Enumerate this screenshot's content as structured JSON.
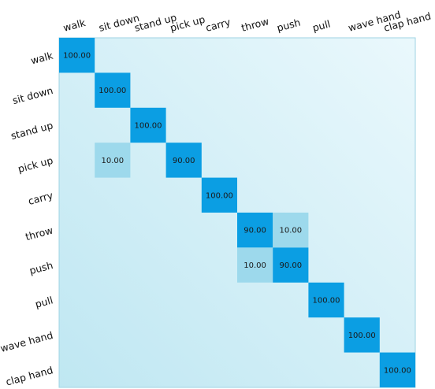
{
  "chart_data": {
    "type": "heatmap",
    "title": "",
    "xlabel": "",
    "ylabel": "",
    "x_categories": [
      "walk",
      "sit down",
      "stand up",
      "pick up",
      "carry",
      "throw",
      "push",
      "pull",
      "wave hand",
      "clap hand"
    ],
    "y_categories": [
      "walk",
      "sit down",
      "stand up",
      "pick up",
      "carry",
      "throw",
      "push",
      "pull",
      "wave hand",
      "clap hand"
    ],
    "cells": [
      {
        "row": 0,
        "col": 0,
        "value": "100.00"
      },
      {
        "row": 1,
        "col": 1,
        "value": "100.00"
      },
      {
        "row": 2,
        "col": 2,
        "value": "100.00"
      },
      {
        "row": 3,
        "col": 1,
        "value": "10.00"
      },
      {
        "row": 3,
        "col": 3,
        "value": "90.00"
      },
      {
        "row": 4,
        "col": 4,
        "value": "100.00"
      },
      {
        "row": 5,
        "col": 5,
        "value": "90.00"
      },
      {
        "row": 5,
        "col": 6,
        "value": "10.00"
      },
      {
        "row": 6,
        "col": 5,
        "value": "10.00"
      },
      {
        "row": 6,
        "col": 6,
        "value": "90.00"
      },
      {
        "row": 7,
        "col": 7,
        "value": "100.00"
      },
      {
        "row": 8,
        "col": 8,
        "value": "100.00"
      },
      {
        "row": 9,
        "col": 9,
        "value": "100.00"
      }
    ],
    "value_range": [
      0,
      100
    ],
    "colors": {
      "high": "#0b9ee3",
      "low": "#9dd9ec",
      "background_start": "#bfe7f2",
      "background_end": "#eaf8fc",
      "border": "#9fd3e3"
    }
  }
}
